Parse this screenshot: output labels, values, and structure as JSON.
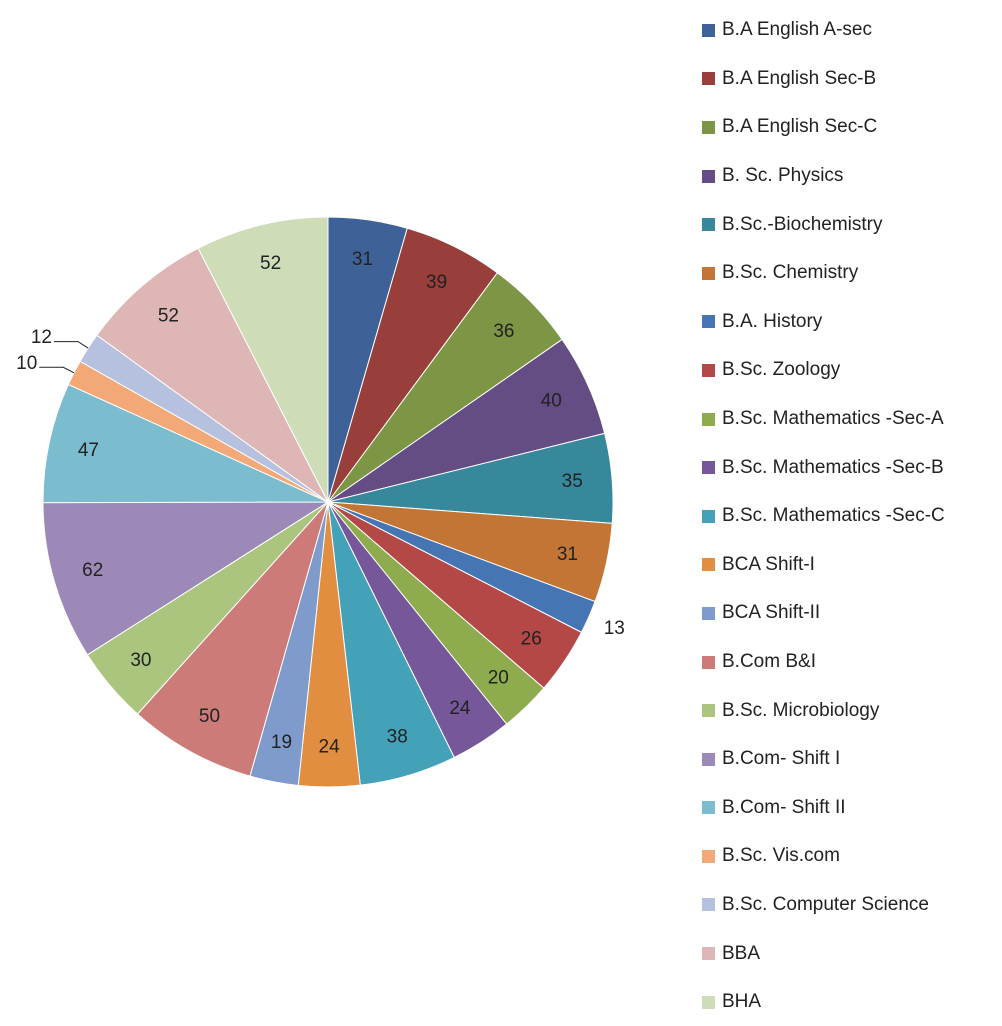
{
  "chart_data": {
    "type": "pie",
    "title": "",
    "legend_position": "right",
    "categories": [
      "B.A English A-sec",
      "B.A English Sec-B",
      "B.A English Sec-C",
      "B. Sc. Physics",
      "B.Sc.-Biochemistry",
      "B.Sc. Chemistry",
      "B.A. History",
      "B.Sc. Zoology",
      "B.Sc. Mathematics -Sec-A",
      "B.Sc. Mathematics -Sec-B",
      "B.Sc. Mathematics -Sec-C",
      "BCA Shift-I",
      "BCA Shift-II",
      "B.Com B&I",
      "B.Sc. Microbiology",
      "B.Com- Shift I",
      "B.Com- Shift II",
      "B.Sc. Vis.com",
      "B.Sc. Computer Science",
      "BBA",
      "BHA"
    ],
    "values": [
      31,
      39,
      36,
      40,
      35,
      31,
      13,
      26,
      20,
      24,
      38,
      24,
      19,
      50,
      30,
      62,
      47,
      10,
      12,
      52,
      52
    ],
    "colors": [
      "#3E6297",
      "#983E3B",
      "#7C9645",
      "#644D84",
      "#37889A",
      "#C27534",
      "#4675B4",
      "#B44846",
      "#8EAC4E",
      "#76589A",
      "#43A1B8",
      "#E18E40",
      "#7F9BCB",
      "#CC7B79",
      "#ABC57E",
      "#9C89B7",
      "#7CBCCF",
      "#F3A878",
      "#B5C1DF",
      "#DEB6B5",
      "#CEDCB8"
    ]
  }
}
